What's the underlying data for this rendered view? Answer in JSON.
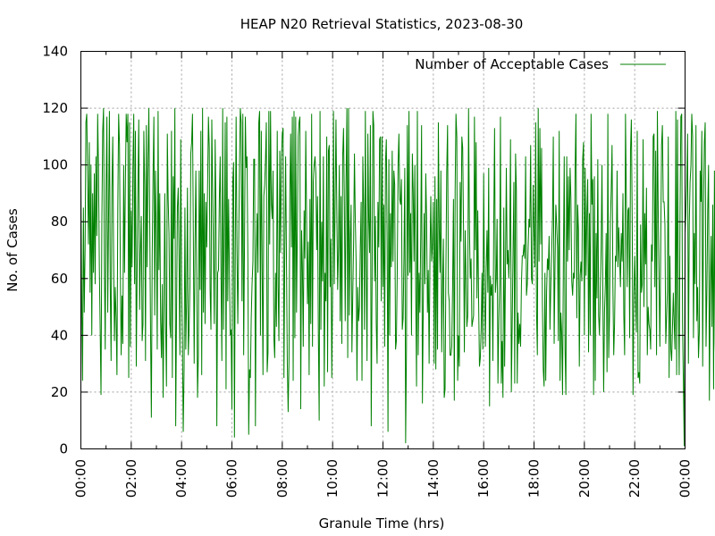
{
  "chart_data": {
    "type": "line",
    "title": "HEAP N20 Retrieval Statistics, 2023-08-30",
    "xlabel": "Granule Time (hrs)",
    "ylabel": "No. of Cases",
    "xlim": [
      0,
      24
    ],
    "ylim": [
      0,
      140
    ],
    "grid": true,
    "legend_position": "top-right",
    "x_ticks": [
      "00:00",
      "02:00",
      "04:00",
      "06:00",
      "08:00",
      "10:00",
      "12:00",
      "14:00",
      "16:00",
      "18:00",
      "20:00",
      "22:00",
      "00:00"
    ],
    "y_ticks": [
      "0",
      "20",
      "40",
      "60",
      "80",
      "100",
      "120",
      "140"
    ],
    "series": [
      {
        "name": "Number of Acceptable Cases",
        "color": "#008000",
        "x_step_minutes": 2,
        "y": [
          95,
          52,
          24,
          85,
          48,
          70,
          115,
          118,
          96,
          72,
          108,
          55,
          100,
          40,
          90,
          62,
          97,
          58,
          103,
          75,
          118,
          98,
          64,
          42,
          19,
          80,
          112,
          120,
          66,
          35,
          90,
          117,
          48,
          82,
          119,
          58,
          31,
          92,
          110,
          68,
          38,
          57,
          46,
          26,
          85,
          118,
          107,
          65,
          33,
          54,
          37,
          100,
          62,
          92,
          118,
          108,
          118,
          25,
          115,
          36,
          84,
          64,
          99,
          118,
          58,
          112,
          29,
          62,
          92,
          116,
          49,
          69,
          82,
          38,
          44,
          112,
          93,
          31,
          114,
          64,
          101,
          120,
          82,
          42,
          11,
          68,
          96,
          117,
          47,
          98,
          77,
          35,
          119,
          63,
          90,
          45,
          32,
          58,
          18,
          51,
          90,
          44,
          22,
          111,
          88,
          76,
          44,
          39,
          112,
          25,
          96,
          74,
          120,
          8,
          48,
          85,
          92,
          67,
          33,
          109,
          58,
          38,
          6,
          28,
          85,
          35,
          52,
          92,
          33,
          43,
          58,
          104,
          108,
          118,
          75,
          30,
          71,
          98,
          63,
          18,
          33,
          98,
          56,
          112,
          26,
          120,
          48,
          90,
          44,
          87,
          71,
          92,
          117,
          106,
          56,
          42,
          116,
          92,
          68,
          44,
          109,
          84,
          8,
          62,
          63,
          88,
          103,
          61,
          31,
          120,
          42,
          76,
          115,
          21,
          117,
          52,
          88,
          63,
          40,
          42,
          14,
          94,
          101,
          4,
          71,
          117,
          71,
          44,
          71,
          98,
          120,
          115,
          52,
          118,
          33,
          72,
          117,
          99,
          103,
          67,
          5,
          28,
          25,
          46,
          58,
          66,
          102,
          102,
          8,
          68,
          83,
          62,
          115,
          119,
          40,
          112,
          65,
          26,
          89,
          93,
          102,
          115,
          27,
          34,
          119,
          72,
          119,
          86,
          81,
          98,
          39,
          32,
          62,
          43,
          112,
          58,
          38,
          105,
          69,
          102,
          111,
          113,
          25,
          69,
          103,
          67,
          30,
          13,
          31,
          89,
          111,
          71,
          117,
          24,
          119,
          39,
          117,
          48,
          78,
          110,
          115,
          117,
          14,
          77,
          64,
          36,
          84,
          67,
          112,
          81,
          51,
          73,
          26,
          88,
          44,
          118,
          36,
          94,
          100,
          103,
          97,
          70,
          89,
          40,
          10,
          119,
          42,
          80,
          59,
          103,
          22,
          62,
          52,
          110,
          27,
          105,
          107,
          57,
          74,
          25,
          56,
          119,
          58,
          87,
          116,
          84,
          56,
          71,
          100,
          45,
          89,
          37,
          103,
          113,
          87,
          45,
          94,
          120,
          32,
          120,
          47,
          74,
          86,
          34,
          54,
          73,
          104,
          81,
          66,
          24,
          57,
          45,
          50,
          71,
          87,
          24,
          103,
          85,
          42,
          119,
          65,
          31,
          111,
          81,
          69,
          114,
          8,
          58,
          119,
          114,
          59,
          82,
          44,
          30,
          87,
          71,
          109,
          110,
          52,
          110,
          57,
          86,
          36,
          101,
          109,
          72,
          6,
          102,
          40,
          83,
          64,
          105,
          66,
          98,
          93,
          35,
          38,
          62,
          100,
          111,
          88,
          86,
          95,
          42,
          46,
          67,
          99,
          2,
          35,
          114,
          61,
          119,
          62,
          83,
          40,
          104,
          91,
          66,
          100,
          57,
          22,
          119,
          33,
          62,
          48,
          75,
          114,
          16,
          49,
          83,
          58,
          97,
          81,
          48,
          63,
          30,
          67,
          89,
          66,
          72,
          87,
          30,
          96,
          28,
          88,
          35,
          115,
          78,
          62,
          98,
          34,
          57,
          74,
          18,
          21,
          63,
          98,
          114,
          55,
          52,
          33,
          33,
          36,
          58,
          88,
          17,
          91,
          118,
          110,
          24,
          40,
          29,
          94,
          73,
          110,
          106,
          78,
          34,
          77,
          60,
          43,
          47,
          120,
          79,
          60,
          67,
          43,
          45,
          47,
          117,
          70,
          108,
          53,
          84,
          52,
          29,
          32,
          42,
          62,
          35,
          97,
          56,
          36,
          63,
          77,
          55,
          99,
          15,
          61,
          54,
          58,
          31,
          79,
          113,
          55,
          60,
          81,
          23,
          44,
          58,
          117,
          23,
          38,
          18,
          85,
          29,
          64,
          99,
          65,
          70,
          60,
          72,
          109,
          20,
          44,
          69,
          94,
          23,
          104,
          91,
          23,
          48,
          37,
          44,
          36,
          58,
          68,
          68,
          72,
          67,
          103,
          54,
          58,
          71,
          81,
          78,
          107,
          60,
          58,
          93,
          77,
          64,
          115,
          48,
          33,
          120,
          66,
          113,
          72,
          106,
          51,
          28,
          22,
          62,
          24,
          55,
          67,
          63,
          75,
          42,
          57,
          69,
          81,
          110,
          37,
          64,
          86,
          79,
          71,
          38,
          112,
          24,
          48,
          41,
          19,
          66,
          103,
          35,
          19,
          103,
          66,
          96,
          70,
          99,
          88,
          59,
          54,
          62,
          60,
          99,
          118,
          46,
          86,
          77,
          29,
          61,
          66,
          59,
          102,
          108,
          40,
          99,
          61,
          83,
          95,
          34,
          83,
          40,
          118,
          86,
          95,
          19,
          96,
          24,
          76,
          53,
          102,
          47,
          40,
          56,
          71,
          100,
          55,
          20,
          48,
          58,
          76,
          27,
          118,
          32,
          47,
          80,
          91,
          107,
          57,
          33,
          44,
          68,
          66,
          98,
          64,
          78,
          67,
          57,
          76,
          66,
          90,
          47,
          33,
          118,
          89,
          57,
          84,
          85,
          39,
          105,
          116,
          81,
          19,
          54,
          68,
          52,
          41,
          112,
          25,
          27,
          23,
          79,
          55,
          58,
          109,
          50,
          83,
          65,
          92,
          33,
          50,
          44,
          42,
          35,
          72,
          66,
          110,
          111,
          57,
          105,
          33,
          119,
          84,
          60,
          36,
          71,
          107,
          114,
          87,
          87,
          79,
          37,
          46,
          56,
          110,
          25,
          68,
          35,
          31,
          43,
          55,
          44,
          35,
          119,
          26,
          116,
          55,
          26,
          83,
          117,
          118,
          44,
          23,
          1,
          76,
          83,
          93,
          111,
          30,
          79,
          94,
          100,
          118,
          110,
          39,
          76,
          58,
          114,
          45,
          57,
          32,
          41,
          98,
          87,
          112,
          29,
          86,
          108,
          115,
          36,
          56,
          84,
          100,
          17,
          56,
          75,
          43,
          86,
          21,
          98,
          37,
          23,
          29,
          53,
          64,
          77,
          65,
          70
        ]
      }
    ]
  }
}
